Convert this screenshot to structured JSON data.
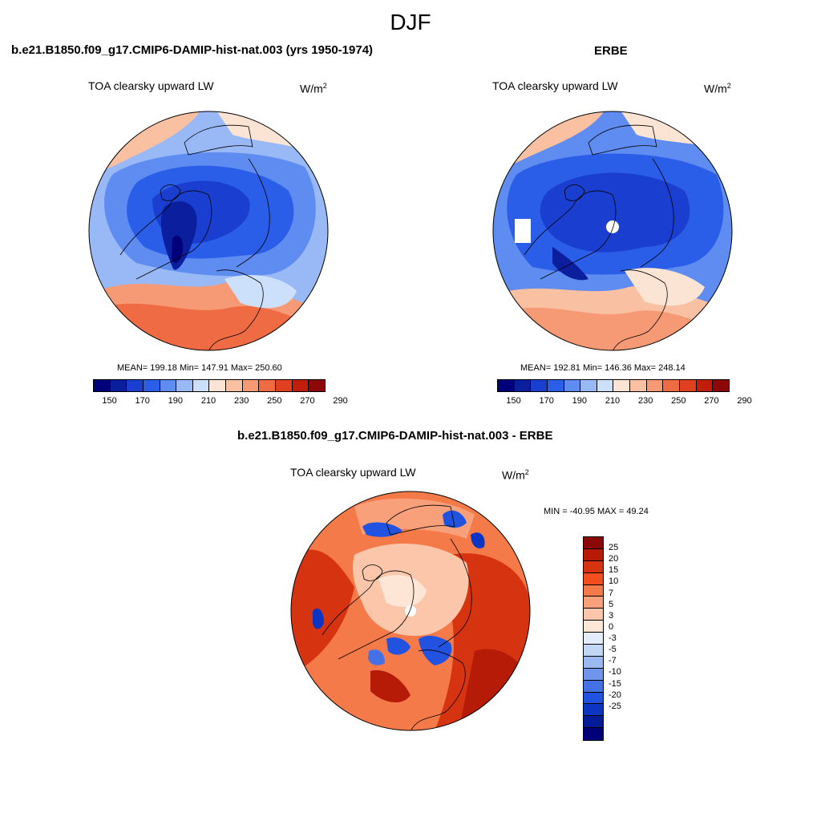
{
  "main_title": "DJF",
  "panels": [
    {
      "title": "b.e21.B1850.f09_g17.CMIP6-DAMIP-hist-nat.003 (yrs 1950-1974)",
      "variable": "TOA clearsky upward LW",
      "units_base": "W/m",
      "units_exp": "2",
      "stats": "MEAN= 199.18  Min= 147.91  Max= 250.60"
    },
    {
      "title": "ERBE",
      "variable": "TOA clearsky upward LW",
      "units_base": "W/m",
      "units_exp": "2",
      "stats": "MEAN= 192.81  Min= 146.36  Max= 248.14"
    },
    {
      "title": "b.e21.B1850.f09_g17.CMIP6-DAMIP-hist-nat.003 - ERBE",
      "variable": "TOA clearsky upward LW",
      "units_base": "W/m",
      "units_exp": "2",
      "stats": "MIN = -40.95 MAX =  49.24"
    }
  ],
  "colorbar_abs": {
    "colors": [
      "#00007a",
      "#0b1f9e",
      "#1a3fd0",
      "#2b5ee8",
      "#5f8cf0",
      "#98b8f6",
      "#cde0fb",
      "#fbe4d4",
      "#f9c0a2",
      "#f59a75",
      "#ef6b43",
      "#e0401f",
      "#c01e0a",
      "#8c0808"
    ],
    "ticks": [
      "150",
      "170",
      "190",
      "210",
      "230",
      "250",
      "270",
      "290"
    ]
  },
  "colorbar_diff": {
    "colors": [
      "#8c0808",
      "#b51b06",
      "#d63411",
      "#f14f1f",
      "#f57a4a",
      "#f8a07a",
      "#fbc6a9",
      "#fde6d6",
      "#e3ecfb",
      "#c2d6f6",
      "#9bb9f1",
      "#6f95ec",
      "#4471e6",
      "#2152e0",
      "#0d35c4",
      "#041c98",
      "#00007a"
    ],
    "ticks": [
      "25",
      "20",
      "15",
      "10",
      "7",
      "5",
      "3",
      "0",
      "-3",
      "-5",
      "-7",
      "-10",
      "-15",
      "-20",
      "-25"
    ]
  },
  "chart_data": [
    {
      "type": "heatmap",
      "title": "b.e21.B1850.f09_g17.CMIP6-DAMIP-hist-nat.003 (yrs 1950-1974)",
      "variable": "TOA clearsky upward LW",
      "units": "W/m2",
      "mean": 199.18,
      "min": 147.91,
      "max": 250.6,
      "contour_levels": [
        150,
        160,
        170,
        180,
        190,
        200,
        210,
        220,
        230,
        240,
        250,
        260,
        270,
        280,
        290
      ]
    },
    {
      "type": "heatmap",
      "title": "ERBE",
      "variable": "TOA clearsky upward LW",
      "units": "W/m2",
      "mean": 192.81,
      "min": 146.36,
      "max": 248.14,
      "contour_levels": [
        150,
        160,
        170,
        180,
        190,
        200,
        210,
        220,
        230,
        240,
        250,
        260,
        270,
        280,
        290
      ]
    },
    {
      "type": "heatmap",
      "title": "b.e21.B1850.f09_g17.CMIP6-DAMIP-hist-nat.003 - ERBE",
      "variable": "TOA clearsky upward LW",
      "units": "W/m2",
      "min": -40.95,
      "max": 49.24,
      "contour_levels": [
        -25,
        -20,
        -15,
        -10,
        -7,
        -5,
        -3,
        0,
        3,
        5,
        7,
        10,
        15,
        20,
        25
      ]
    }
  ]
}
